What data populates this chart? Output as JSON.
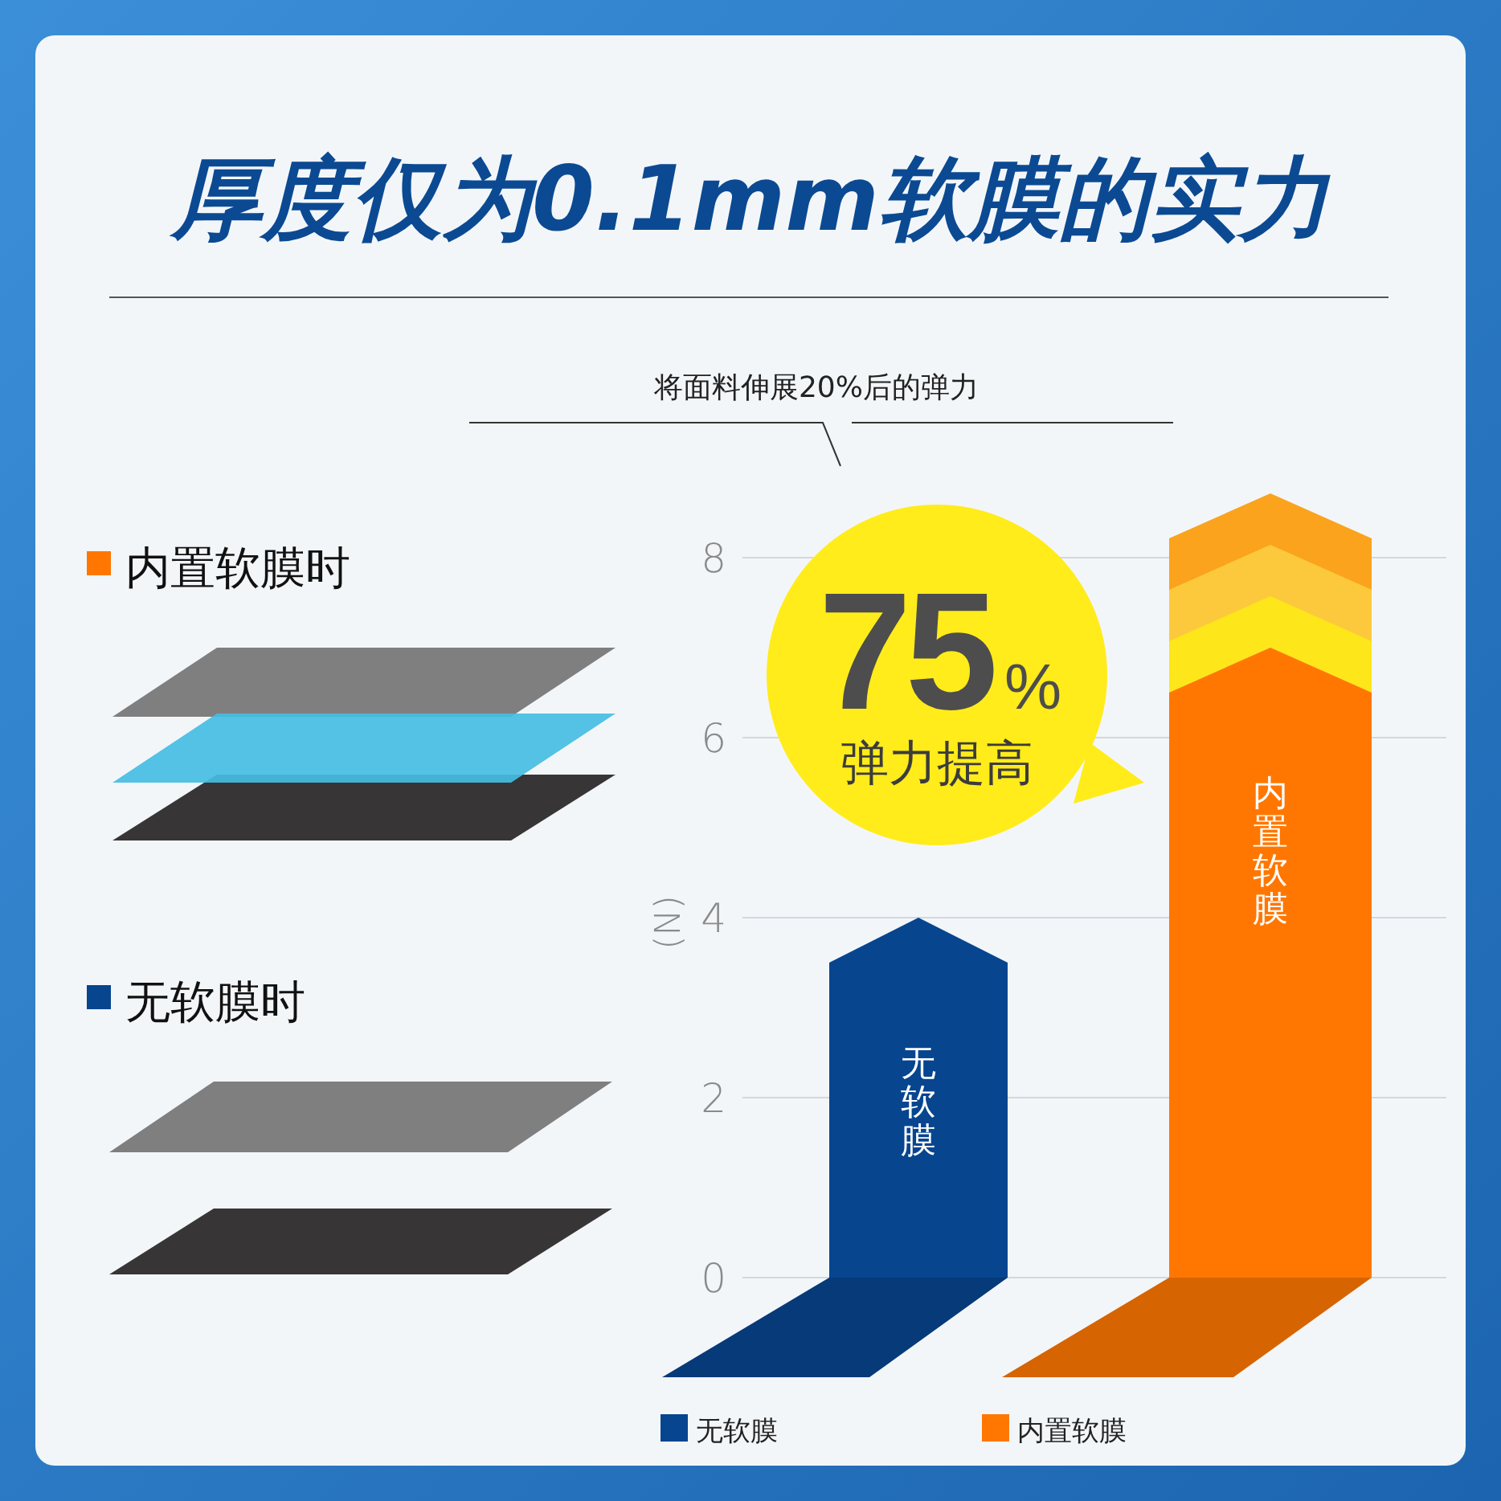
{
  "chart_data": {
    "type": "bar",
    "title": "厚度仅为0.1mm软膜的实力",
    "subtitle": "将面料伸展20%后的弹力",
    "ylabel": "(N)",
    "categories": [
      null,
      null
    ],
    "stacked": true,
    "series": [
      {
        "name": "无软膜",
        "color": "#07458f",
        "values": [
          4,
          null
        ]
      },
      {
        "name": "内置软膜",
        "color": "#ff7700",
        "values": [
          null,
          7
        ]
      }
    ],
    "ylim": [
      0,
      8
    ],
    "yticks": [
      0,
      2,
      4,
      6,
      8
    ],
    "grid": "y",
    "legend": "bottom",
    "annotations": [
      "75%",
      "弹力提高",
      "内置软膜时",
      "无软膜时"
    ]
  }
}
